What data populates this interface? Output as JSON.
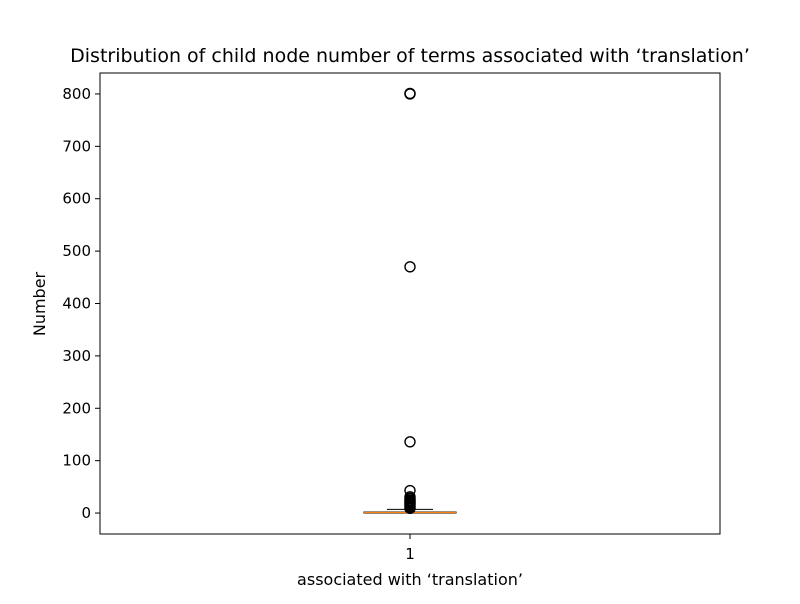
{
  "chart_data": {
    "type": "box",
    "title": "Distribution of child node number of terms associated with ‘translation’",
    "xlabel": "associated with ‘translation’",
    "ylabel": "Number",
    "categories": [
      "1"
    ],
    "ylim": [
      -40,
      840
    ],
    "yticks": [
      0,
      100,
      200,
      300,
      400,
      500,
      600,
      700,
      800
    ],
    "grid": false,
    "boxes": [
      {
        "category": "1",
        "whisker_low": 0,
        "q1": 0,
        "median": 1,
        "q3": 2,
        "whisker_high": 7,
        "outliers": [
          9,
          11,
          13,
          15,
          17,
          19,
          21,
          23,
          25,
          28,
          31,
          43,
          136,
          470,
          800,
          801
        ]
      }
    ],
    "colors": {
      "box": "#000000",
      "median": "#ff7f0e",
      "outlier_edge": "#000000"
    }
  }
}
